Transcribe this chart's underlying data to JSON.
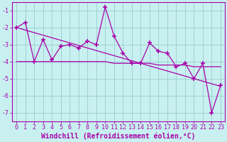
{
  "x": [
    0,
    1,
    2,
    3,
    4,
    5,
    6,
    7,
    8,
    9,
    10,
    11,
    12,
    13,
    14,
    15,
    16,
    17,
    18,
    19,
    20,
    21,
    22,
    23
  ],
  "y_main": [
    -2.0,
    -1.7,
    -4.0,
    -2.7,
    -3.9,
    -3.1,
    -3.0,
    -3.2,
    -2.8,
    -3.0,
    -0.8,
    -2.5,
    -3.5,
    -4.1,
    -4.1,
    -2.9,
    -3.4,
    -3.5,
    -4.3,
    -4.1,
    -5.0,
    -4.1,
    -7.0,
    -5.4
  ],
  "y_flat": [
    -4.0,
    -4.0,
    -4.0,
    -4.0,
    -4.0,
    -4.0,
    -4.0,
    -4.0,
    -4.0,
    -4.0,
    -4.0,
    -4.1,
    -4.1,
    -4.1,
    -4.1,
    -4.1,
    -4.2,
    -4.2,
    -4.2,
    -4.2,
    -4.3,
    -4.3,
    -4.3,
    -4.3
  ],
  "y_trend": [
    -2.0,
    -2.15,
    -2.3,
    -2.45,
    -2.6,
    -2.75,
    -2.9,
    -3.05,
    -3.2,
    -3.35,
    -3.5,
    -3.65,
    -3.8,
    -3.95,
    -4.1,
    -4.25,
    -4.4,
    -4.55,
    -4.7,
    -4.85,
    -5.0,
    -5.15,
    -5.3,
    -5.45
  ],
  "line_color": "#aa00aa",
  "bg_color": "#c8f0f0",
  "plot_bg": "#c8f0f0",
  "grid_color": "#99cccc",
  "xlabel": "Windchill (Refroidissement éolien,°C)",
  "xlim": [
    -0.5,
    23.5
  ],
  "ylim": [
    -7.5,
    -0.5
  ],
  "yticks": [
    -1,
    -2,
    -3,
    -4,
    -5,
    -6,
    -7
  ],
  "xticks": [
    0,
    1,
    2,
    3,
    4,
    5,
    6,
    7,
    8,
    9,
    10,
    11,
    12,
    13,
    14,
    15,
    16,
    17,
    18,
    19,
    20,
    21,
    22,
    23
  ],
  "marker": "+",
  "markersize": 4,
  "markeredgewidth": 1.2,
  "linewidth": 0.9,
  "xlabel_fontsize": 7,
  "tick_fontsize": 6,
  "fig_width": 3.2,
  "fig_height": 2.0
}
